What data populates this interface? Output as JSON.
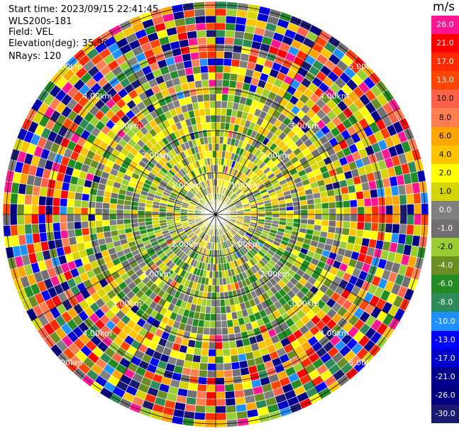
{
  "header": {
    "start_time": "Start time: 2023/09/15 22:41:45",
    "station": "WLS200s-181",
    "field": "Field: VEL",
    "elevation": "Elevation(deg): 35.30",
    "nrays": "NRays: 120"
  },
  "chart_data": {
    "type": "heatmap",
    "projection": "polar",
    "field": "VEL",
    "nrays": 120,
    "unit": "m/s",
    "range_rings": [
      "1.00km",
      "2.00km",
      "3.00km",
      "4.00km",
      "5.00km"
    ],
    "colorbar": {
      "unit": "m/s",
      "levels": [
        "26.0",
        "21.0",
        "17.0",
        "13.0",
        "10.0",
        "8.0",
        "6.0",
        "4.0",
        "2.0",
        "1.0",
        "0.0",
        "-1.0",
        "-2.0",
        "-4.0",
        "-6.0",
        "-8.0",
        "-10.0",
        "-13.0",
        "-17.0",
        "-21.0",
        "-26.0",
        "-30.0"
      ],
      "colors": [
        "#ff1493",
        "#ff0000",
        "#ff2a00",
        "#ff4500",
        "#ff6347",
        "#ff7f50",
        "#ffa500",
        "#ffc400",
        "#ffff00",
        "#d4d400",
        "#808080",
        "#707070",
        "#9acd32",
        "#6b8e23",
        "#228b22",
        "#2e8b57",
        "#1e90ff",
        "#0000ff",
        "#0000cd",
        "#00008b",
        "#000080",
        "#191970"
      ]
    }
  }
}
